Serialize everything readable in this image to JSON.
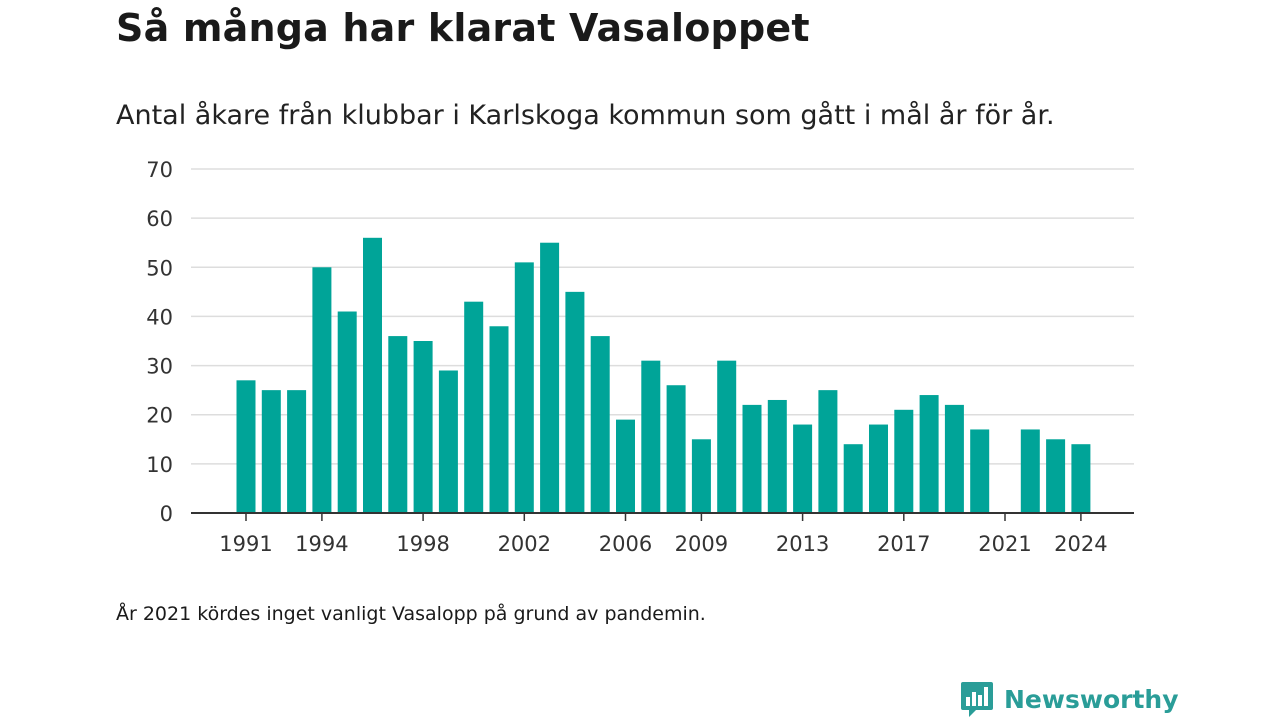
{
  "title": "Så många har klarat Vasaloppet",
  "subtitle": "Antal åkare från klubbar i Karlskoga kommun som gått i mål år för år.",
  "footnote": "År 2021 kördes inget vanligt Vasalopp på grund av pandemin.",
  "brand": {
    "name": "Newsworthy",
    "icon": "newsworthy-logo-icon"
  },
  "colors": {
    "bar": "#00a498",
    "grid": "#dddddd",
    "axis": "#333333",
    "brand": "#2a9d98"
  },
  "chart_data": {
    "type": "bar",
    "title": "Så många har klarat Vasaloppet",
    "subtitle": "Antal åkare från klubbar i Karlskoga kommun som gått i mål år för år.",
    "xlabel": "",
    "ylabel": "",
    "ylim": [
      0,
      70
    ],
    "yticks": [
      0,
      10,
      20,
      30,
      40,
      50,
      60,
      70
    ],
    "xticks": [
      1991,
      1994,
      1998,
      2002,
      2006,
      2009,
      2013,
      2017,
      2021,
      2024
    ],
    "grid": true,
    "legend": "none",
    "categories": [
      1991,
      1992,
      1993,
      1994,
      1995,
      1996,
      1997,
      1998,
      1999,
      2000,
      2001,
      2002,
      2003,
      2004,
      2005,
      2006,
      2007,
      2008,
      2009,
      2010,
      2011,
      2012,
      2013,
      2014,
      2015,
      2016,
      2017,
      2018,
      2019,
      2020,
      2021,
      2022,
      2023,
      2024
    ],
    "values": [
      27,
      25,
      25,
      50,
      41,
      56,
      36,
      35,
      29,
      43,
      38,
      51,
      55,
      45,
      36,
      19,
      31,
      26,
      15,
      31,
      22,
      23,
      18,
      25,
      14,
      18,
      21,
      24,
      22,
      17,
      0,
      17,
      15,
      14
    ]
  }
}
